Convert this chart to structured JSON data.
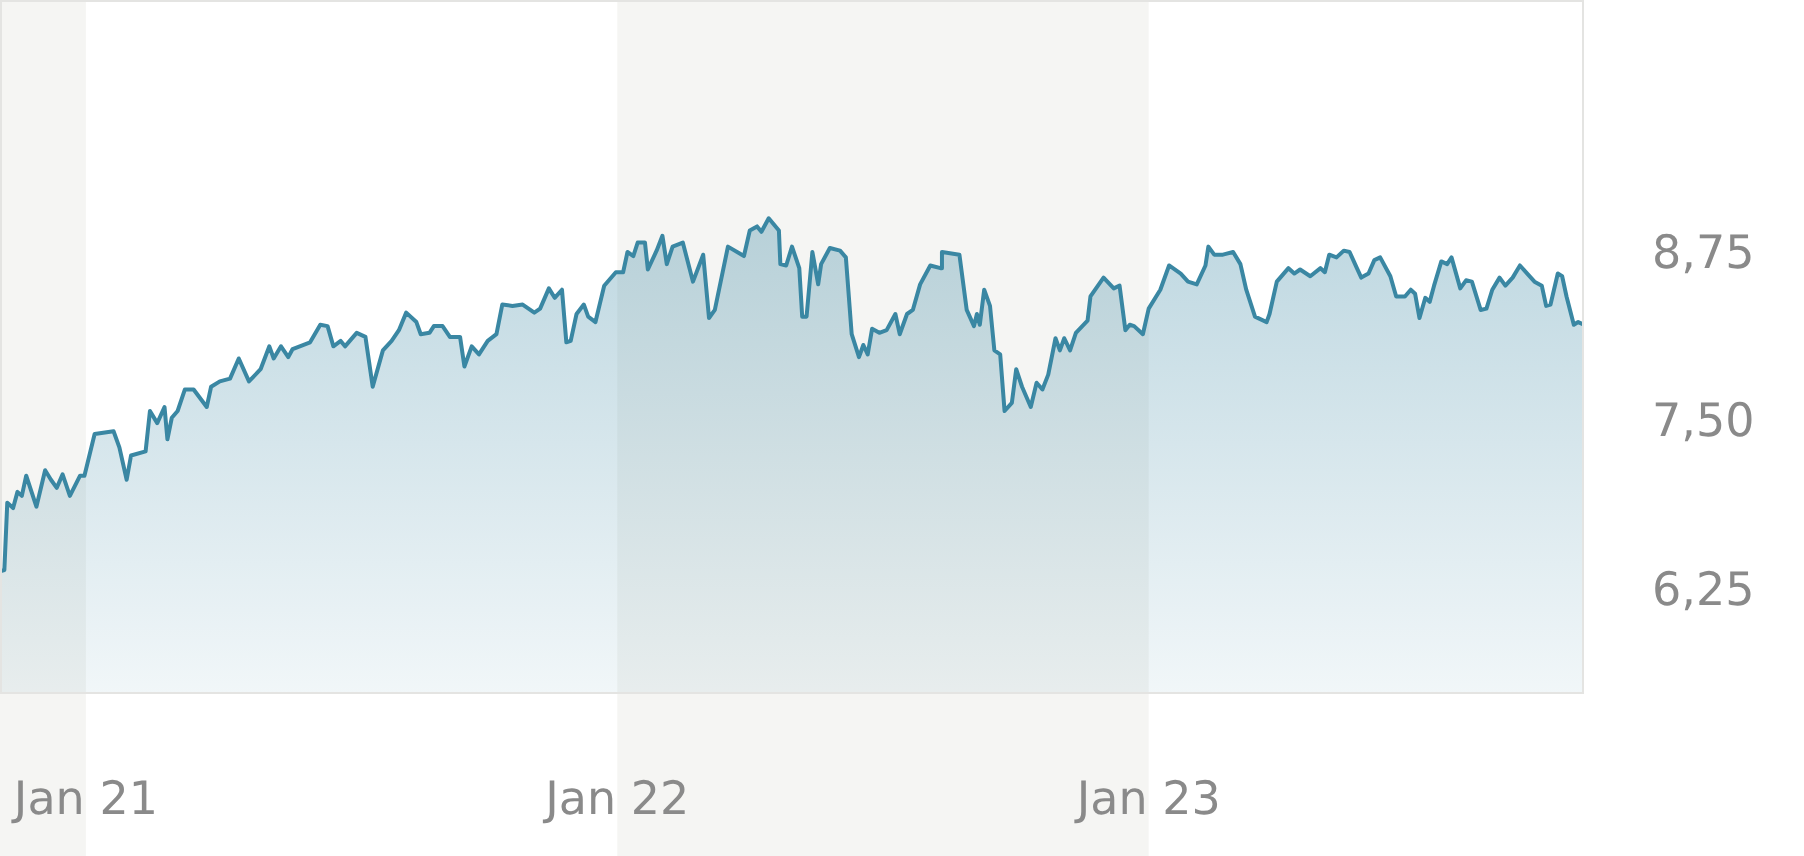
{
  "chart_data": {
    "type": "area",
    "x": [
      "2020-11-03",
      "2020-11-06",
      "2020-11-08",
      "2020-11-12",
      "2020-11-15",
      "2020-11-18",
      "2020-11-21",
      "2020-11-28",
      "2020-12-04",
      "2020-12-08",
      "2020-12-12",
      "2020-12-16",
      "2020-12-21",
      "2020-12-28",
      "2020-12-31",
      "2021-01-07",
      "2021-01-20",
      "2021-01-24",
      "2021-01-29",
      "2021-02-01",
      "2021-02-11",
      "2021-02-14",
      "2021-02-19",
      "2021-02-24",
      "2021-02-26",
      "2021-03-01",
      "2021-03-05",
      "2021-03-10",
      "2021-03-16",
      "2021-03-25",
      "2021-03-28",
      "2021-04-03",
      "2021-04-10",
      "2021-04-16",
      "2021-04-23",
      "2021-05-01",
      "2021-05-07",
      "2021-05-10",
      "2021-05-15",
      "2021-05-20",
      "2021-05-23",
      "2021-06-04",
      "2021-06-11",
      "2021-06-16",
      "2021-06-20",
      "2021-06-25",
      "2021-06-28",
      "2021-07-06",
      "2021-07-12",
      "2021-07-17",
      "2021-07-24",
      "2021-07-30",
      "2021-08-04",
      "2021-08-09",
      "2021-08-16",
      "2021-08-19",
      "2021-08-25",
      "2021-08-28",
      "2021-09-03",
      "2021-09-08",
      "2021-09-15",
      "2021-09-18",
      "2021-09-23",
      "2021-09-28",
      "2021-10-04",
      "2021-10-10",
      "2021-10-14",
      "2021-10-21",
      "2021-10-28",
      "2021-11-05",
      "2021-11-09",
      "2021-11-15",
      "2021-11-19",
      "2021-11-24",
      "2021-11-27",
      "2021-11-30",
      "2021-12-04",
      "2021-12-09",
      "2021-12-12",
      "2021-12-17",
      "2021-12-23",
      "2021-12-31",
      "2022-01-05",
      "2022-01-08",
      "2022-01-12",
      "2022-01-15",
      "2022-01-20",
      "2022-01-22",
      "2022-01-28",
      "2022-02-01",
      "2022-02-04",
      "2022-02-08",
      "2022-02-15",
      "2022-02-22",
      "2022-03-01",
      "2022-03-05",
      "2022-03-09",
      "2022-03-18",
      "2022-03-29",
      "2022-04-02",
      "2022-04-07",
      "2022-04-10",
      "2022-04-15",
      "2022-04-22",
      "2022-04-23",
      "2022-04-27",
      "2022-05-01",
      "2022-05-06",
      "2022-05-08",
      "2022-05-11",
      "2022-05-15",
      "2022-05-19",
      "2022-05-21",
      "2022-05-27",
      "2022-06-03",
      "2022-06-07",
      "2022-06-11",
      "2022-06-16",
      "2022-06-19",
      "2022-06-22",
      "2022-06-25",
      "2022-06-30",
      "2022-07-05",
      "2022-07-11",
      "2022-07-14",
      "2022-07-19",
      "2022-07-23",
      "2022-07-28",
      "2022-08-04",
      "2022-08-11",
      "2022-08-12",
      "2022-08-24",
      "2022-08-29",
      "2022-09-03",
      "2022-09-05",
      "2022-09-07",
      "2022-09-10",
      "2022-09-14",
      "2022-09-17",
      "2022-09-21",
      "2022-09-24",
      "2022-09-29",
      "2022-10-02",
      "2022-10-06",
      "2022-10-12",
      "2022-10-16",
      "2022-10-20",
      "2022-10-24",
      "2022-10-29",
      "2022-11-01",
      "2022-11-04",
      "2022-11-08",
      "2022-11-12",
      "2022-11-20",
      "2022-11-22",
      "2022-12-01",
      "2022-12-08",
      "2022-12-12",
      "2022-12-16",
      "2022-12-19",
      "2022-12-22",
      "2022-12-28",
      "2023-01-01",
      "2023-01-09",
      "2023-01-15",
      "2023-01-23",
      "2023-01-28",
      "2023-02-03",
      "2023-02-09",
      "2023-02-11",
      "2023-02-15",
      "2023-02-21",
      "2023-02-28",
      "2023-03-05",
      "2023-03-09",
      "2023-03-15",
      "2023-03-23",
      "2023-03-25",
      "2023-03-30",
      "2023-04-07",
      "2023-04-11",
      "2023-04-15",
      "2023-04-22",
      "2023-04-29",
      "2023-05-02",
      "2023-05-05",
      "2023-05-10",
      "2023-05-15",
      "2023-05-19",
      "2023-05-24",
      "2023-05-27",
      "2023-06-01",
      "2023-06-05",
      "2023-06-09",
      "2023-06-16",
      "2023-06-20",
      "2023-06-26",
      "2023-06-30",
      "2023-07-03",
      "2023-07-06",
      "2023-07-10",
      "2023-07-13",
      "2023-07-16",
      "2023-07-21",
      "2023-07-25",
      "2023-07-28",
      "2023-08-03",
      "2023-08-07",
      "2023-08-11",
      "2023-08-17",
      "2023-08-21",
      "2023-08-25",
      "2023-08-30",
      "2023-09-03",
      "2023-09-08",
      "2023-09-13",
      "2023-09-18",
      "2023-09-23",
      "2023-09-28",
      "2023-10-01",
      "2023-10-04",
      "2023-10-09",
      "2023-10-12",
      "2023-10-15",
      "2023-10-20",
      "2023-10-23",
      "2023-10-27"
    ],
    "series": [
      {
        "color": "#3a87a3",
        "values": [
          6.41,
          6.42,
          6.92,
          6.88,
          7.0,
          6.97,
          7.12,
          6.89,
          7.16,
          7.09,
          7.03,
          7.13,
          6.97,
          7.12,
          7.12,
          7.43,
          7.45,
          7.33,
          7.09,
          7.27,
          7.3,
          7.6,
          7.51,
          7.63,
          7.39,
          7.55,
          7.6,
          7.76,
          7.76,
          7.63,
          7.78,
          7.82,
          7.84,
          7.99,
          7.82,
          7.91,
          8.08,
          7.99,
          8.08,
          8.0,
          8.06,
          8.11,
          8.24,
          8.23,
          8.08,
          8.12,
          8.08,
          8.18,
          8.15,
          7.78,
          8.05,
          8.12,
          8.2,
          8.33,
          8.26,
          8.17,
          8.18,
          8.23,
          8.23,
          8.15,
          8.15,
          7.93,
          8.08,
          8.02,
          8.12,
          8.17,
          8.39,
          8.38,
          8.39,
          8.33,
          8.36,
          8.51,
          8.44,
          8.5,
          8.11,
          8.12,
          8.32,
          8.39,
          8.3,
          8.26,
          8.53,
          8.63,
          8.63,
          8.78,
          8.75,
          8.85,
          8.85,
          8.65,
          8.79,
          8.9,
          8.69,
          8.82,
          8.85,
          8.56,
          8.76,
          8.29,
          8.35,
          8.82,
          8.75,
          8.94,
          8.97,
          8.93,
          9.03,
          8.94,
          8.69,
          8.68,
          8.82,
          8.66,
          8.3,
          8.3,
          8.78,
          8.54,
          8.69,
          8.81,
          8.79,
          8.74,
          8.17,
          8.0,
          8.09,
          8.02,
          8.21,
          8.18,
          8.2,
          8.32,
          8.17,
          8.32,
          8.35,
          8.54,
          8.68,
          8.66,
          8.78,
          8.76,
          8.35,
          8.23,
          8.32,
          8.24,
          8.5,
          8.38,
          8.05,
          8.02,
          7.6,
          7.66,
          7.91,
          7.78,
          7.63,
          7.81,
          7.76,
          7.87,
          8.14,
          8.05,
          8.14,
          8.05,
          8.18,
          8.27,
          8.45,
          8.59,
          8.51,
          8.53,
          8.2,
          8.24,
          8.23,
          8.17,
          8.36,
          8.5,
          8.68,
          8.62,
          8.56,
          8.54,
          8.68,
          8.82,
          8.76,
          8.76,
          8.78,
          8.69,
          8.5,
          8.3,
          8.26,
          8.32,
          8.56,
          8.66,
          8.62,
          8.65,
          8.6,
          8.66,
          8.63,
          8.76,
          8.74,
          8.79,
          8.78,
          8.66,
          8.59,
          8.62,
          8.72,
          8.74,
          8.6,
          8.45,
          8.45,
          8.5,
          8.47,
          8.29,
          8.44,
          8.41,
          8.53,
          8.71,
          8.69,
          8.74,
          8.51,
          8.57,
          8.56,
          8.35,
          8.36,
          8.5,
          8.59,
          8.53,
          8.59,
          8.68,
          8.62,
          8.56,
          8.53,
          8.38,
          8.39,
          8.62,
          8.6,
          8.45,
          8.24,
          8.26,
          8.24
        ]
      }
    ],
    "xlim": [
      "2020-11-03",
      "2023-10-27"
    ],
    "xticks": [
      {
        "value": "2021-01-01",
        "label": "Jan 21"
      },
      {
        "value": "2022-01-01",
        "label": "Jan 22"
      },
      {
        "value": "2023-01-01",
        "label": "Jan 23"
      }
    ],
    "ylim": [
      5.5,
      10.65
    ],
    "yticks": [
      {
        "value": 6.25,
        "label": "6,25"
      },
      {
        "value": 7.5,
        "label": "7,50"
      },
      {
        "value": 8.75,
        "label": "8,75"
      }
    ],
    "bands": [
      {
        "axis": "x",
        "from": "2020-11-03",
        "to": "2021-01-01",
        "color": "#f5f5f3"
      },
      {
        "axis": "x",
        "from": "2022-01-01",
        "to": "2023-01-01",
        "color": "#f5f5f3"
      }
    ],
    "grid": false,
    "legend": false,
    "marker": "none",
    "line_style": "solid"
  }
}
